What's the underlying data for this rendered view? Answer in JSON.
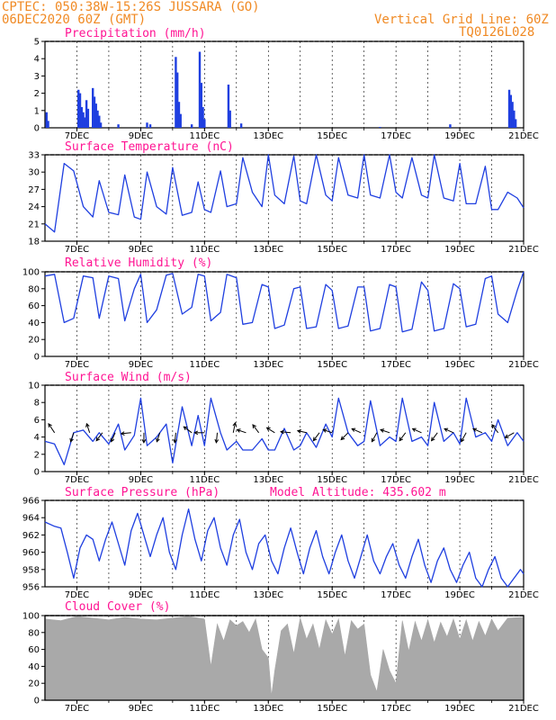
{
  "header": {
    "line1": "CPTEC:   050:38W-15:26S   JUSSARA (GO)",
    "line2": "06DEC2020 60Z (GMT)",
    "grid_note": "Vertical Grid Line: 60Z",
    "code": "TQ0126L028"
  },
  "colors": {
    "header": "#f08a24",
    "title": "#ff1493",
    "series": "#1f3fe0",
    "cloud": "#a9a9a9",
    "arrow": "#000000"
  },
  "x_axis": {
    "start_day": 6,
    "end_day": 21,
    "tick_labels": [
      "7DEC",
      "9DEC",
      "11DEC",
      "13DEC",
      "15DEC",
      "17DEC",
      "19DEC",
      "21DEC"
    ],
    "tick_days": [
      7,
      9,
      11,
      13,
      15,
      17,
      19,
      21
    ]
  },
  "chart_data": [
    {
      "id": "precip",
      "type": "bar",
      "title": "Precipitation (mm/h)",
      "ylim": [
        0,
        5
      ],
      "yticks": [
        0,
        1,
        2,
        3,
        4,
        5
      ],
      "events": [
        {
          "day": 6.05,
          "value": 0.9
        },
        {
          "day": 6.1,
          "value": 0.4
        },
        {
          "day": 7.05,
          "value": 2.2
        },
        {
          "day": 7.1,
          "value": 2.0
        },
        {
          "day": 7.15,
          "value": 1.2
        },
        {
          "day": 7.2,
          "value": 0.9
        },
        {
          "day": 7.25,
          "value": 0.6
        },
        {
          "day": 7.3,
          "value": 1.6
        },
        {
          "day": 7.35,
          "value": 1.1
        },
        {
          "day": 7.5,
          "value": 2.3
        },
        {
          "day": 7.55,
          "value": 1.8
        },
        {
          "day": 7.6,
          "value": 1.4
        },
        {
          "day": 7.65,
          "value": 1.0
        },
        {
          "day": 7.7,
          "value": 0.7
        },
        {
          "day": 7.75,
          "value": 0.3
        },
        {
          "day": 8.3,
          "value": 0.2
        },
        {
          "day": 9.2,
          "value": 0.3
        },
        {
          "day": 9.3,
          "value": 0.2
        },
        {
          "day": 10.1,
          "value": 4.1
        },
        {
          "day": 10.15,
          "value": 3.2
        },
        {
          "day": 10.2,
          "value": 1.5
        },
        {
          "day": 10.25,
          "value": 0.8
        },
        {
          "day": 10.6,
          "value": 0.2
        },
        {
          "day": 10.85,
          "value": 4.4
        },
        {
          "day": 10.9,
          "value": 2.6
        },
        {
          "day": 10.95,
          "value": 1.2
        },
        {
          "day": 11.0,
          "value": 0.5
        },
        {
          "day": 11.75,
          "value": 2.5
        },
        {
          "day": 11.8,
          "value": 1.0
        },
        {
          "day": 12.15,
          "value": 0.25
        },
        {
          "day": 16.5,
          "value": 0.05
        },
        {
          "day": 18.7,
          "value": 0.2
        },
        {
          "day": 20.55,
          "value": 2.2
        },
        {
          "day": 20.6,
          "value": 1.9
        },
        {
          "day": 20.65,
          "value": 1.5
        },
        {
          "day": 20.7,
          "value": 1.0
        },
        {
          "day": 20.75,
          "value": 0.5
        }
      ]
    },
    {
      "id": "temp",
      "type": "line",
      "title": "Surface Temperature (nC)",
      "ylim": [
        18,
        33
      ],
      "yticks": [
        18,
        21,
        24,
        27,
        30,
        33
      ],
      "x": [
        6.0,
        6.3,
        6.6,
        6.9,
        7.2,
        7.5,
        7.7,
        8.0,
        8.3,
        8.5,
        8.8,
        9.0,
        9.2,
        9.5,
        9.8,
        10.0,
        10.3,
        10.6,
        10.8,
        11.0,
        11.2,
        11.5,
        11.7,
        12.0,
        12.2,
        12.5,
        12.8,
        13.0,
        13.2,
        13.5,
        13.8,
        14.0,
        14.2,
        14.5,
        14.8,
        15.0,
        15.2,
        15.5,
        15.8,
        16.0,
        16.2,
        16.5,
        16.8,
        17.0,
        17.2,
        17.5,
        17.8,
        18.0,
        18.2,
        18.5,
        18.8,
        19.0,
        19.2,
        19.5,
        19.8,
        20.0,
        20.2,
        20.5,
        20.8,
        21.0
      ],
      "y": [
        21,
        19.6,
        31.5,
        30.2,
        24.0,
        22.2,
        28.5,
        23.0,
        22.6,
        29.5,
        22.2,
        21.8,
        30.0,
        24.0,
        22.7,
        30.8,
        22.5,
        23.0,
        28.3,
        23.5,
        23.0,
        30.2,
        24.0,
        24.5,
        32.5,
        26.5,
        24.0,
        33.0,
        26.0,
        24.5,
        32.8,
        25.0,
        24.5,
        33.0,
        26.0,
        25.0,
        32.5,
        26.0,
        25.5,
        33.0,
        26.0,
        25.5,
        33.0,
        26.5,
        25.5,
        32.5,
        26.0,
        25.5,
        33.0,
        25.5,
        25.0,
        31.5,
        24.5,
        24.5,
        31.0,
        23.5,
        23.5,
        26.5,
        25.5,
        23.8
      ]
    },
    {
      "id": "rh",
      "type": "line",
      "title": "Relative Humidity (%)",
      "ylim": [
        0,
        100
      ],
      "yticks": [
        0,
        20,
        40,
        60,
        80,
        100
      ],
      "x": [
        6.0,
        6.3,
        6.6,
        6.9,
        7.2,
        7.5,
        7.7,
        8.0,
        8.3,
        8.5,
        8.8,
        9.0,
        9.2,
        9.5,
        9.8,
        10.0,
        10.3,
        10.6,
        10.8,
        11.0,
        11.2,
        11.5,
        11.7,
        12.0,
        12.2,
        12.5,
        12.8,
        13.0,
        13.2,
        13.5,
        13.8,
        14.0,
        14.2,
        14.5,
        14.8,
        15.0,
        15.2,
        15.5,
        15.8,
        16.0,
        16.2,
        16.5,
        16.8,
        17.0,
        17.2,
        17.5,
        17.8,
        18.0,
        18.2,
        18.5,
        18.8,
        19.0,
        19.2,
        19.5,
        19.8,
        20.0,
        20.2,
        20.5,
        20.8,
        21.0
      ],
      "y": [
        95,
        97,
        40,
        45,
        95,
        93,
        45,
        95,
        92,
        42,
        80,
        97,
        40,
        55,
        96,
        98,
        50,
        58,
        97,
        95,
        42,
        52,
        97,
        93,
        38,
        40,
        85,
        82,
        33,
        37,
        80,
        82,
        33,
        35,
        85,
        78,
        33,
        36,
        82,
        82,
        30,
        33,
        85,
        82,
        29,
        32,
        88,
        78,
        30,
        33,
        86,
        80,
        35,
        38,
        92,
        95,
        50,
        40,
        78,
        100
      ]
    },
    {
      "id": "wind",
      "type": "line",
      "title": "Surface Wind (m/s)",
      "ylim": [
        0,
        10
      ],
      "yticks": [
        0,
        2,
        4,
        6,
        8,
        10
      ],
      "x": [
        6.0,
        6.3,
        6.6,
        6.9,
        7.2,
        7.5,
        7.7,
        8.0,
        8.3,
        8.5,
        8.8,
        9.0,
        9.2,
        9.5,
        9.8,
        10.0,
        10.3,
        10.6,
        10.8,
        11.0,
        11.2,
        11.5,
        11.7,
        12.0,
        12.2,
        12.5,
        12.8,
        13.0,
        13.2,
        13.5,
        13.8,
        14.0,
        14.2,
        14.5,
        14.8,
        15.0,
        15.2,
        15.5,
        15.8,
        16.0,
        16.2,
        16.5,
        16.8,
        17.0,
        17.2,
        17.5,
        17.8,
        18.0,
        18.2,
        18.5,
        18.8,
        19.0,
        19.2,
        19.5,
        19.8,
        20.0,
        20.2,
        20.5,
        20.8,
        21.0
      ],
      "y": [
        3.5,
        3.2,
        0.8,
        4.5,
        4.8,
        3.5,
        4.5,
        3.2,
        5.5,
        2.5,
        4.2,
        8.5,
        3.0,
        4.0,
        5.5,
        1.0,
        7.5,
        3.0,
        6.5,
        3.0,
        8.5,
        4.5,
        2.5,
        3.5,
        2.5,
        2.5,
        3.8,
        2.5,
        2.5,
        5.0,
        2.5,
        3.0,
        4.5,
        2.8,
        5.5,
        4.0,
        8.5,
        4.5,
        3.0,
        3.5,
        8.2,
        3.0,
        4.0,
        3.5,
        8.5,
        3.5,
        4.0,
        3.0,
        8.0,
        3.5,
        4.5,
        3.2,
        8.5,
        4.0,
        4.5,
        3.5,
        6.0,
        3.0,
        4.5,
        3.5
      ],
      "arrows": [
        {
          "day": 6.3,
          "u": -0.6,
          "v": 0.9
        },
        {
          "day": 6.9,
          "u": -0.3,
          "v": -0.9
        },
        {
          "day": 7.4,
          "u": -0.3,
          "v": 0.9
        },
        {
          "day": 7.8,
          "u": -0.6,
          "v": -0.8
        },
        {
          "day": 8.2,
          "u": -0.4,
          "v": -0.9
        },
        {
          "day": 8.7,
          "u": -1.0,
          "v": -0.1
        },
        {
          "day": 9.1,
          "u": 0.0,
          "v": -1.0
        },
        {
          "day": 9.6,
          "u": -0.3,
          "v": -0.9
        },
        {
          "day": 10.1,
          "u": -0.1,
          "v": -1.0
        },
        {
          "day": 10.6,
          "u": -0.8,
          "v": 0.6
        },
        {
          "day": 11.0,
          "u": -1.0,
          "v": 0.0
        },
        {
          "day": 11.4,
          "u": -0.1,
          "v": -1.0
        },
        {
          "day": 11.9,
          "u": 0.2,
          "v": 1.0
        },
        {
          "day": 12.3,
          "u": -0.9,
          "v": 0.3
        },
        {
          "day": 12.7,
          "u": -0.6,
          "v": 0.8
        },
        {
          "day": 13.2,
          "u": -0.8,
          "v": 0.5
        },
        {
          "day": 13.7,
          "u": -1.0,
          "v": 0.1
        },
        {
          "day": 14.2,
          "u": -0.9,
          "v": 0.2
        },
        {
          "day": 14.6,
          "u": -0.6,
          "v": -0.8
        },
        {
          "day": 15.0,
          "u": -0.9,
          "v": 0.3
        },
        {
          "day": 15.5,
          "u": -0.7,
          "v": -0.7
        },
        {
          "day": 15.9,
          "u": -0.9,
          "v": 0.4
        },
        {
          "day": 16.4,
          "u": -0.5,
          "v": -0.9
        },
        {
          "day": 16.8,
          "u": -0.9,
          "v": 0.3
        },
        {
          "day": 17.3,
          "u": -0.6,
          "v": -0.8
        },
        {
          "day": 17.8,
          "u": -0.9,
          "v": 0.4
        },
        {
          "day": 18.3,
          "u": -0.6,
          "v": -0.8
        },
        {
          "day": 18.8,
          "u": -0.9,
          "v": 0.4
        },
        {
          "day": 19.2,
          "u": -0.5,
          "v": -0.9
        },
        {
          "day": 19.7,
          "u": -0.9,
          "v": 0.4
        },
        {
          "day": 20.2,
          "u": -0.6,
          "v": 0.8
        },
        {
          "day": 20.7,
          "u": -0.9,
          "v": -0.5
        }
      ]
    },
    {
      "id": "pressure",
      "type": "line",
      "title": "Surface Pressure (hPa)",
      "annotation": "Model Altitude: 435.602 m",
      "ylim": [
        956,
        966
      ],
      "yticks": [
        956,
        958,
        960,
        962,
        964,
        966
      ],
      "x": [
        6.0,
        6.3,
        6.5,
        6.7,
        6.9,
        7.1,
        7.3,
        7.5,
        7.7,
        7.9,
        8.1,
        8.3,
        8.5,
        8.7,
        8.9,
        9.1,
        9.3,
        9.5,
        9.7,
        9.9,
        10.1,
        10.3,
        10.5,
        10.7,
        10.9,
        11.1,
        11.3,
        11.5,
        11.7,
        11.9,
        12.1,
        12.3,
        12.5,
        12.7,
        12.9,
        13.1,
        13.3,
        13.5,
        13.7,
        13.9,
        14.1,
        14.3,
        14.5,
        14.7,
        14.9,
        15.1,
        15.3,
        15.5,
        15.7,
        15.9,
        16.1,
        16.3,
        16.5,
        16.7,
        16.9,
        17.1,
        17.3,
        17.5,
        17.7,
        17.9,
        18.1,
        18.3,
        18.5,
        18.7,
        18.9,
        19.1,
        19.3,
        19.5,
        19.7,
        19.9,
        20.1,
        20.3,
        20.5,
        20.7,
        20.9,
        21.0
      ],
      "y": [
        963.5,
        963.0,
        962.8,
        960.0,
        957.0,
        960.5,
        962.0,
        961.5,
        959.0,
        961.5,
        963.5,
        961.0,
        958.5,
        962.5,
        964.5,
        962.0,
        959.5,
        962.0,
        964.0,
        960.0,
        958.0,
        962.0,
        965.0,
        961.5,
        959.0,
        962.5,
        964.0,
        960.5,
        958.5,
        962.0,
        963.8,
        960.0,
        958.0,
        961.0,
        962.0,
        959.0,
        957.5,
        960.5,
        962.8,
        960.0,
        957.5,
        960.5,
        962.5,
        959.5,
        957.5,
        960.0,
        962.0,
        959.0,
        957.0,
        959.5,
        962.0,
        959.0,
        957.5,
        959.5,
        961.0,
        958.5,
        957.0,
        959.5,
        961.5,
        958.5,
        956.5,
        959.0,
        960.5,
        958.0,
        956.5,
        958.5,
        960.0,
        957.0,
        956.0,
        958.0,
        959.5,
        957.0,
        955.8,
        957.0,
        958.0,
        957.5
      ]
    },
    {
      "id": "cloud",
      "type": "area",
      "title": "Cloud Cover (%)",
      "ylim": [
        0,
        100
      ],
      "yticks": [
        0,
        20,
        40,
        60,
        80,
        100
      ],
      "x": [
        6.0,
        6.5,
        7.0,
        7.5,
        8.0,
        8.5,
        9.0,
        9.5,
        10.0,
        10.5,
        11.0,
        11.2,
        11.4,
        11.6,
        11.8,
        12.0,
        12.2,
        12.4,
        12.6,
        12.8,
        13.0,
        13.1,
        13.2,
        13.4,
        13.6,
        13.8,
        14.0,
        14.2,
        14.4,
        14.6,
        14.8,
        15.0,
        15.2,
        15.4,
        15.6,
        15.8,
        16.0,
        16.2,
        16.4,
        16.6,
        16.8,
        17.0,
        17.2,
        17.4,
        17.6,
        17.8,
        18.0,
        18.2,
        18.4,
        18.6,
        18.8,
        19.0,
        19.2,
        19.4,
        19.6,
        19.8,
        20.0,
        20.2,
        20.5,
        21.0
      ],
      "y": [
        96,
        94,
        99,
        97,
        95,
        98,
        96,
        95,
        97,
        99,
        96,
        40,
        90,
        70,
        95,
        88,
        93,
        80,
        96,
        60,
        50,
        5,
        35,
        82,
        90,
        55,
        97,
        72,
        90,
        60,
        95,
        78,
        96,
        52,
        94,
        84,
        90,
        30,
        10,
        60,
        35,
        20,
        94,
        58,
        93,
        70,
        95,
        68,
        92,
        75,
        96,
        72,
        95,
        70,
        93,
        76,
        96,
        82,
        97,
        98
      ]
    }
  ]
}
